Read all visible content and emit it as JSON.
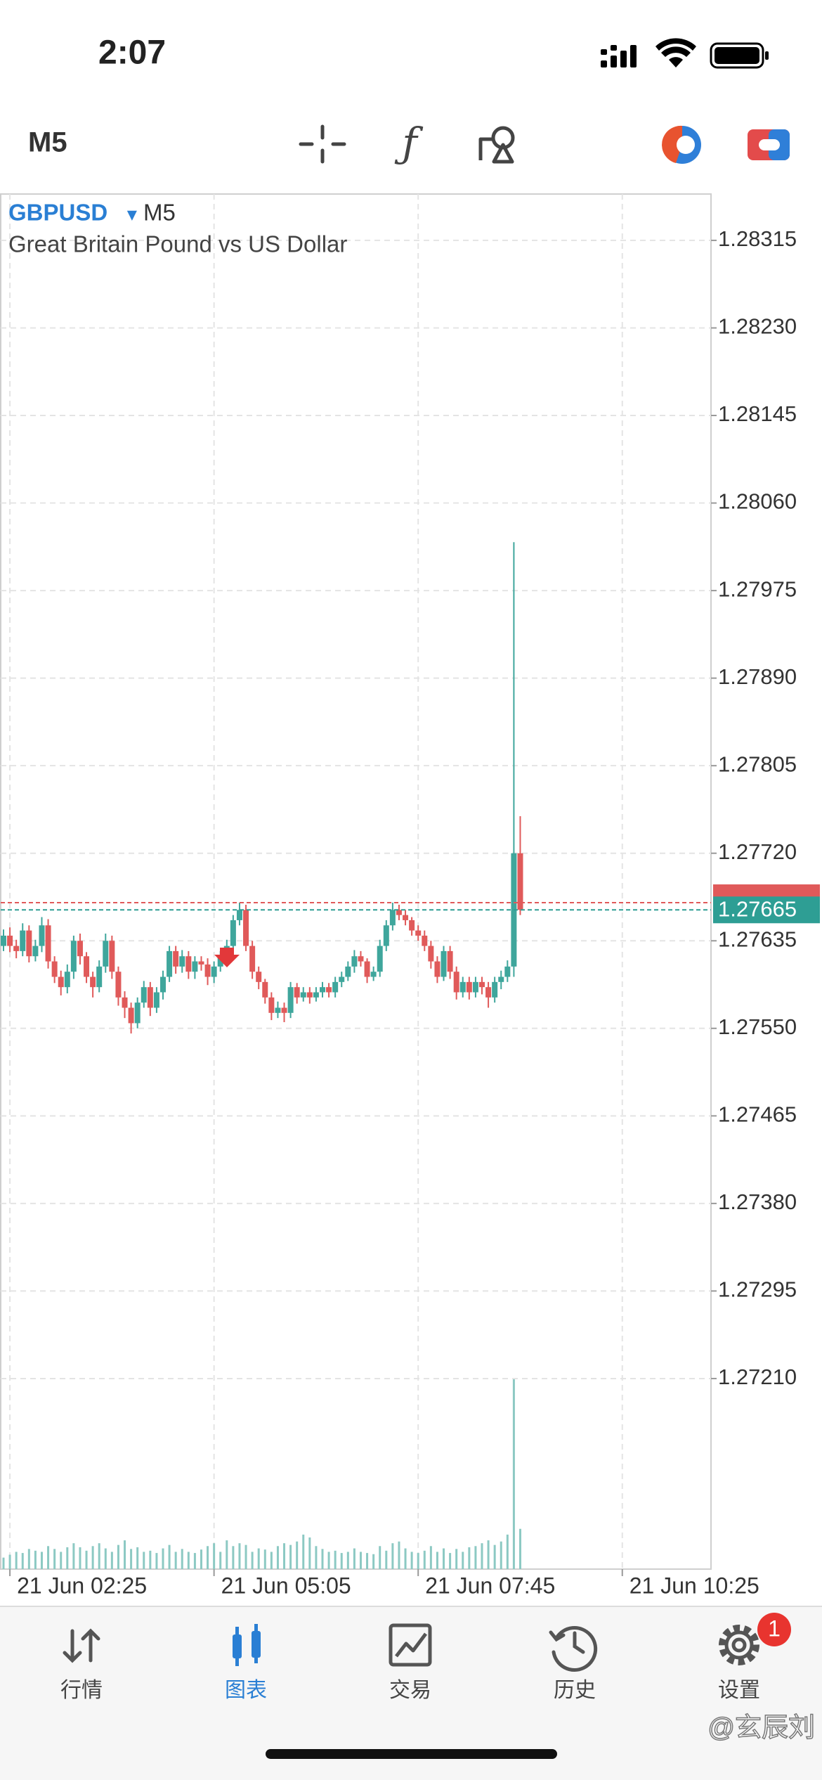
{
  "status_bar": {
    "time": "2:07"
  },
  "toolbar": {
    "timeframe": "M5"
  },
  "chart_data": {
    "type": "candlestick",
    "symbol": "GBPUSD",
    "timeframe": "M5",
    "description": "Great Britain Pound vs US Dollar",
    "x": [
      "21 Jun 02:20",
      "21 Jun 02:25",
      "21 Jun 02:30",
      "21 Jun 02:35",
      "21 Jun 02:40",
      "21 Jun 02:45",
      "21 Jun 02:50",
      "21 Jun 02:55",
      "21 Jun 03:00",
      "21 Jun 03:05",
      "21 Jun 03:10",
      "21 Jun 03:15",
      "21 Jun 03:20",
      "21 Jun 03:25",
      "21 Jun 03:30",
      "21 Jun 03:35",
      "21 Jun 03:40",
      "21 Jun 03:45",
      "21 Jun 03:50",
      "21 Jun 03:55",
      "21 Jun 04:00",
      "21 Jun 04:05",
      "21 Jun 04:10",
      "21 Jun 04:15",
      "21 Jun 04:20",
      "21 Jun 04:25",
      "21 Jun 04:30",
      "21 Jun 04:35",
      "21 Jun 04:40",
      "21 Jun 04:45",
      "21 Jun 04:50",
      "21 Jun 04:55",
      "21 Jun 05:00",
      "21 Jun 05:05",
      "21 Jun 05:10",
      "21 Jun 05:15",
      "21 Jun 05:20",
      "21 Jun 05:25",
      "21 Jun 05:30",
      "21 Jun 05:35",
      "21 Jun 05:40",
      "21 Jun 05:45",
      "21 Jun 05:50",
      "21 Jun 05:55",
      "21 Jun 06:00",
      "21 Jun 06:05",
      "21 Jun 06:10",
      "21 Jun 06:15",
      "21 Jun 06:20",
      "21 Jun 06:25",
      "21 Jun 06:30",
      "21 Jun 06:35",
      "21 Jun 06:40",
      "21 Jun 06:45",
      "21 Jun 06:50",
      "21 Jun 06:55",
      "21 Jun 07:00",
      "21 Jun 07:05",
      "21 Jun 07:10",
      "21 Jun 07:15",
      "21 Jun 07:20",
      "21 Jun 07:25",
      "21 Jun 07:30",
      "21 Jun 07:35",
      "21 Jun 07:40",
      "21 Jun 07:45",
      "21 Jun 07:50",
      "21 Jun 07:55",
      "21 Jun 08:00",
      "21 Jun 08:05",
      "21 Jun 08:10",
      "21 Jun 08:15",
      "21 Jun 08:20",
      "21 Jun 08:25",
      "21 Jun 08:30",
      "21 Jun 08:35",
      "21 Jun 08:40",
      "21 Jun 08:45",
      "21 Jun 08:50",
      "21 Jun 08:55",
      "21 Jun 09:00",
      "21 Jun 09:05"
    ],
    "open": [
      1.2763,
      1.2764,
      1.2763,
      1.27625,
      1.27645,
      1.2762,
      1.2763,
      1.2765,
      1.27615,
      1.276,
      1.2759,
      1.27605,
      1.27635,
      1.2762,
      1.276,
      1.2759,
      1.2761,
      1.27635,
      1.27605,
      1.2758,
      1.2757,
      1.27555,
      1.27575,
      1.2759,
      1.2757,
      1.27585,
      1.276,
      1.27625,
      1.2761,
      1.2762,
      1.27605,
      1.27615,
      1.27612,
      1.276,
      1.2761,
      1.2762,
      1.2763,
      1.27655,
      1.27665,
      1.2763,
      1.27605,
      1.27595,
      1.2758,
      1.27565,
      1.2757,
      1.27565,
      1.2759,
      1.2758,
      1.27585,
      1.2758,
      1.27585,
      1.2759,
      1.27585,
      1.27595,
      1.276,
      1.2761,
      1.2762,
      1.27615,
      1.276,
      1.27605,
      1.2763,
      1.2765,
      1.27665,
      1.2766,
      1.27655,
      1.27645,
      1.2764,
      1.2763,
      1.27615,
      1.276,
      1.27625,
      1.27605,
      1.27585,
      1.27595,
      1.27585,
      1.27595,
      1.2759,
      1.2758,
      1.27595,
      1.276,
      1.2761,
      1.2772
    ],
    "high": [
      1.27646,
      1.27648,
      1.27636,
      1.27652,
      1.2765,
      1.27636,
      1.27658,
      1.27656,
      1.2762,
      1.27606,
      1.27612,
      1.2764,
      1.27642,
      1.27624,
      1.27605,
      1.27616,
      1.27642,
      1.2764,
      1.2761,
      1.27586,
      1.27575,
      1.2758,
      1.27596,
      1.27595,
      1.2759,
      1.27606,
      1.2763,
      1.2763,
      1.27626,
      1.27625,
      1.2762,
      1.2762,
      1.27618,
      1.27615,
      1.27625,
      1.27636,
      1.2766,
      1.27672,
      1.2767,
      1.27635,
      1.2761,
      1.27598,
      1.27585,
      1.27576,
      1.27575,
      1.27595,
      1.27594,
      1.2759,
      1.2759,
      1.2759,
      1.27595,
      1.27594,
      1.276,
      1.27605,
      1.27615,
      1.27626,
      1.27625,
      1.27618,
      1.2761,
      1.27636,
      1.27655,
      1.27672,
      1.2767,
      1.27665,
      1.27658,
      1.2765,
      1.27645,
      1.27635,
      1.2762,
      1.2763,
      1.2763,
      1.2761,
      1.276,
      1.276,
      1.276,
      1.276,
      1.27595,
      1.276,
      1.27606,
      1.27616,
      1.28022,
      1.27756
    ],
    "low": [
      1.27625,
      1.27624,
      1.27618,
      1.2762,
      1.27614,
      1.27615,
      1.27624,
      1.27608,
      1.27594,
      1.27582,
      1.27584,
      1.27598,
      1.27612,
      1.27594,
      1.2758,
      1.27585,
      1.27604,
      1.27598,
      1.27572,
      1.2756,
      1.27545,
      1.2755,
      1.2757,
      1.27562,
      1.27565,
      1.27578,
      1.27595,
      1.27603,
      1.27604,
      1.27598,
      1.27598,
      1.27606,
      1.27592,
      1.27594,
      1.27605,
      1.27612,
      1.27625,
      1.2765,
      1.27625,
      1.27598,
      1.27588,
      1.27574,
      1.27558,
      1.2756,
      1.27556,
      1.2756,
      1.27574,
      1.27576,
      1.27574,
      1.27576,
      1.2758,
      1.2758,
      1.2758,
      1.2759,
      1.27596,
      1.27604,
      1.2761,
      1.27594,
      1.27596,
      1.276,
      1.27625,
      1.27645,
      1.27655,
      1.2765,
      1.2764,
      1.27635,
      1.27625,
      1.27608,
      1.27594,
      1.27596,
      1.27598,
      1.27578,
      1.2758,
      1.27578,
      1.2758,
      1.27583,
      1.2757,
      1.27575,
      1.27588,
      1.27595,
      1.276,
      1.2766
    ],
    "close": [
      1.2764,
      1.2763,
      1.27625,
      1.27645,
      1.2762,
      1.2763,
      1.2765,
      1.27615,
      1.276,
      1.2759,
      1.27605,
      1.27635,
      1.2762,
      1.276,
      1.2759,
      1.2761,
      1.27635,
      1.27605,
      1.2758,
      1.2757,
      1.27555,
      1.27575,
      1.2759,
      1.2757,
      1.27585,
      1.276,
      1.27625,
      1.2761,
      1.2762,
      1.27605,
      1.27615,
      1.27612,
      1.276,
      1.2761,
      1.2762,
      1.2763,
      1.27655,
      1.27665,
      1.2763,
      1.27605,
      1.27595,
      1.2758,
      1.27565,
      1.2757,
      1.27565,
      1.2759,
      1.2758,
      1.27585,
      1.2758,
      1.27585,
      1.2759,
      1.27585,
      1.27595,
      1.276,
      1.2761,
      1.2762,
      1.27615,
      1.276,
      1.27605,
      1.2763,
      1.2765,
      1.27665,
      1.2766,
      1.27655,
      1.27645,
      1.2764,
      1.2763,
      1.27615,
      1.276,
      1.27625,
      1.27605,
      1.27585,
      1.27595,
      1.27585,
      1.27595,
      1.2759,
      1.2758,
      1.27595,
      1.276,
      1.2761,
      1.2772,
      1.27665
    ],
    "volume": [
      20,
      25,
      30,
      28,
      35,
      32,
      30,
      40,
      35,
      30,
      38,
      45,
      38,
      32,
      40,
      45,
      36,
      30,
      42,
      50,
      35,
      38,
      30,
      32,
      28,
      36,
      42,
      30,
      35,
      30,
      28,
      34,
      40,
      45,
      30,
      50,
      40,
      45,
      42,
      30,
      36,
      34,
      30,
      40,
      45,
      42,
      48,
      60,
      55,
      40,
      35,
      30,
      32,
      28,
      30,
      36,
      30,
      28,
      26,
      40,
      32,
      45,
      48,
      36,
      30,
      28,
      32,
      40,
      30,
      36,
      28,
      35,
      30,
      38,
      40,
      45,
      50,
      42,
      48,
      60,
      330,
      70
    ],
    "up_color": "#3fa69c",
    "down_color": "#e05a5a",
    "volume_color": "#8cc9c3",
    "bid": 1.27665,
    "ask": 1.27672,
    "bid_color": "#2e9e94",
    "ask_color": "#e05a5a",
    "ylim": [
      1.27025,
      1.2836
    ],
    "yticks": [
      1.28315,
      {
        "value": 1.2823,
        "label": "1.28230"
      },
      1.28145,
      {
        "value": 1.2806,
        "label": "1.28060"
      },
      1.27975,
      {
        "value": 1.2789,
        "label": "1.27890"
      },
      1.27805,
      {
        "value": 1.2772,
        "label": "1.27720"
      },
      1.27635,
      {
        "value": 1.2755,
        "label": "1.27550"
      },
      1.27465,
      {
        "value": 1.2738,
        "label": "1.27380"
      },
      1.27295,
      {
        "value": 1.2721,
        "label": "1.27210"
      }
    ],
    "xticks": [
      "21 Jun 02:25",
      "21 Jun 05:05",
      "21 Jun 07:45",
      "21 Jun 10:25"
    ],
    "grid": true
  },
  "tabs": [
    {
      "label": "行情"
    },
    {
      "label": "图表"
    },
    {
      "label": "交易"
    },
    {
      "label": "历史"
    },
    {
      "label": "设置"
    }
  ],
  "badge": "1",
  "watermark": "@玄辰刘"
}
